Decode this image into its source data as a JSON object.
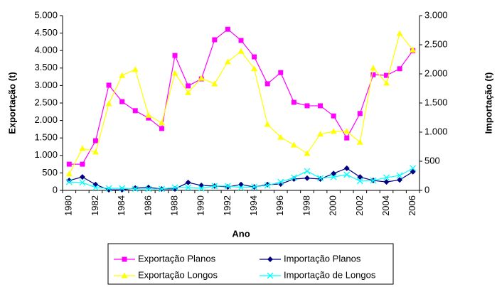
{
  "chart_data": {
    "type": "line",
    "x_label": "Ano",
    "y_label": "Exportação (t)",
    "y2_label": "Importação (t)",
    "categories": [
      "1980",
      null,
      "1982",
      null,
      "1984",
      null,
      "1986",
      null,
      "1988",
      null,
      "1990",
      null,
      "1992",
      null,
      "1994",
      null,
      "1996",
      null,
      "1998",
      null,
      "2000",
      null,
      "2002",
      null,
      "2004",
      null,
      "2006"
    ],
    "ylim": [
      0,
      5000
    ],
    "yticks": [
      0,
      {
        "value": 500,
        "label": "500"
      },
      {
        "value": 1000,
        "label": "1.000"
      },
      {
        "value": 1500,
        "label": "1.500"
      },
      {
        "value": 2000,
        "label": "2.000"
      },
      {
        "value": 2500,
        "label": "2.500"
      },
      {
        "value": 3000,
        "label": "3.000"
      },
      {
        "value": 3500,
        "label": "3.500"
      },
      {
        "value": 4000,
        "label": "4.000"
      },
      {
        "value": 4500,
        "label": "4.500"
      },
      {
        "value": 5000,
        "label": "5.000"
      }
    ],
    "y2lim": [
      0,
      3000
    ],
    "y2ticks": [
      0,
      500,
      {
        "value": 1000,
        "label": "1.000"
      },
      {
        "value": 1500,
        "label": "1.500"
      },
      {
        "value": 2000,
        "label": "2.000"
      },
      {
        "value": 2500,
        "label": "2.500"
      },
      {
        "value": 3000,
        "label": "3.000"
      }
    ],
    "series": [
      {
        "name": "Exportação Planos",
        "color": "#ff00ff",
        "marker": "square",
        "values": [
          750,
          750,
          1420,
          3010,
          2540,
          2280,
          2070,
          1770,
          3860,
          2990,
          3190,
          4310,
          4610,
          4290,
          3820,
          3050,
          3370,
          2520,
          2420,
          2420,
          2130,
          1500,
          2200,
          3310,
          3290,
          3480,
          4000
        ]
      },
      {
        "name": "Importação Planos",
        "color": "#000080",
        "marker": "diamond",
        "axis": "y2",
        "values": [
          170,
          230,
          100,
          10,
          10,
          40,
          50,
          25,
          25,
          135,
          85,
          75,
          60,
          100,
          60,
          100,
          110,
          195,
          210,
          195,
          290,
          380,
          230,
          170,
          145,
          180,
          320
        ]
      },
      {
        "name": "Exportação Longos",
        "color": "#ffff00",
        "marker": "triangle",
        "values": [
          470,
          1200,
          1100,
          2480,
          3290,
          3460,
          2150,
          1930,
          3350,
          2800,
          3210,
          3050,
          3680,
          3980,
          3480,
          1890,
          1520,
          1300,
          1060,
          1610,
          1690,
          1690,
          1380,
          3500,
          3070,
          4490,
          4020
        ]
      },
      {
        "name": "Importação de Longos",
        "color": "#00ffff",
        "marker": "x",
        "axis": "y2",
        "values": [
          145,
          135,
          50,
          35,
          35,
          25,
          25,
          25,
          50,
          50,
          35,
          75,
          75,
          50,
          60,
          85,
          145,
          220,
          330,
          210,
          230,
          270,
          160,
          170,
          220,
          255,
          380
        ]
      }
    ]
  }
}
